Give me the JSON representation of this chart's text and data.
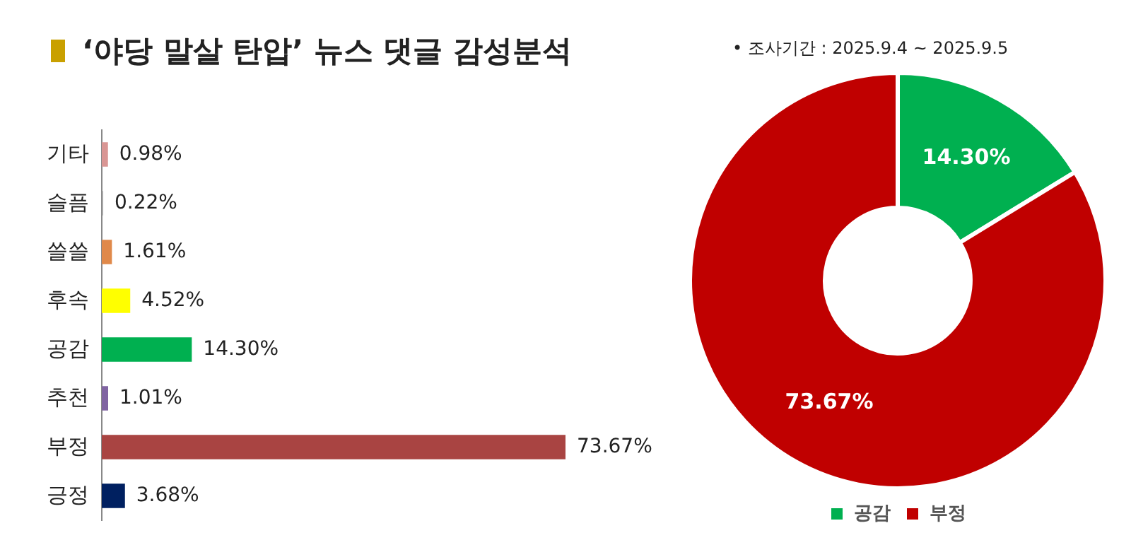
{
  "chart_data": [
    {
      "type": "bar",
      "title": "‘야당 말살 탄압’ 뉴스 댓글 감성분석",
      "orientation": "horizontal",
      "categories": [
        "기타",
        "슬픔",
        "쓸쓸",
        "후속",
        "공감",
        "추천",
        "부정",
        "긍정"
      ],
      "values": [
        0.98,
        0.22,
        1.61,
        4.52,
        14.3,
        1.01,
        73.67,
        3.68
      ],
      "colors": [
        "#d99694",
        "#a6a6a6",
        "#e0894a",
        "#ffff00",
        "#00b050",
        "#8064a2",
        "#a94442",
        "#002060"
      ],
      "value_labels": [
        "0.98%",
        "0.22%",
        "1.61%",
        "4.52%",
        "14.30%",
        "1.01%",
        "73.67%",
        "3.68%"
      ]
    },
    {
      "type": "donut",
      "annotations": [
        "•    조사기간 : 2025.9.4 ~ 2025.9.5"
      ],
      "categories": [
        "공감",
        "부정"
      ],
      "values": [
        14.3,
        73.67
      ],
      "colors": [
        "#00b050",
        "#c00000"
      ],
      "value_labels": [
        "14.30%",
        "73.67%"
      ],
      "legend": "bottom"
    }
  ]
}
